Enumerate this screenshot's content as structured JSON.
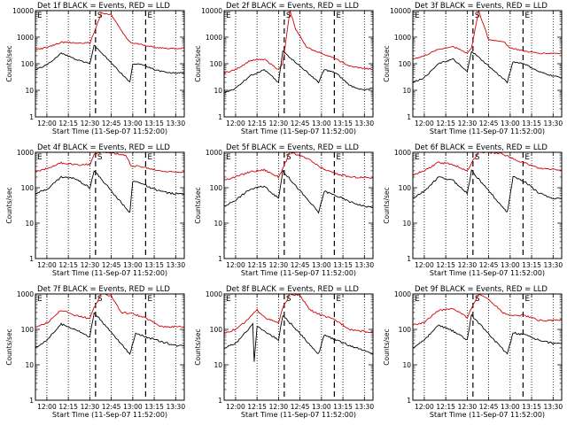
{
  "chart_data": [
    {
      "type": "line",
      "title": "Det 1f BLACK = Events, RED = LLD",
      "ylabel": "Counts/sec",
      "xlabel": "Start Time (11-Sep-07 11:52:00)",
      "yscale": "log",
      "ylim": [
        1,
        10000
      ],
      "y_ticks": [
        "1",
        "10",
        "100",
        "1000",
        "10000"
      ],
      "xlim": [
        "11:52",
        "13:36"
      ],
      "x_ticks": [
        "12:00",
        "12:15",
        "12:30",
        "12:45",
        "13:00",
        "13:15",
        "13:30"
      ],
      "markers": [
        {
          "label": "S",
          "time": "12:34"
        },
        {
          "label": "E",
          "time": "13:09"
        }
      ],
      "series": [
        {
          "name": "LLD",
          "color": "#d40000",
          "x": [
            "11:52",
            "12:00",
            "12:10",
            "12:20",
            "12:30",
            "12:33",
            "12:38",
            "12:45",
            "12:55",
            "12:59",
            "13:05",
            "13:15",
            "13:25",
            "13:36"
          ],
          "y": [
            350,
            400,
            650,
            600,
            600,
            1500,
            8000,
            7000,
            1000,
            600,
            550,
            420,
            380,
            380
          ]
        },
        {
          "name": "Events",
          "color": "#000000",
          "x": [
            "11:52",
            "12:00",
            "12:10",
            "12:20",
            "12:30",
            "12:33",
            "12:58",
            "13:00",
            "13:05",
            "13:15",
            "13:25",
            "13:36"
          ],
          "y": [
            60,
            90,
            250,
            150,
            100,
            500,
            20,
            100,
            100,
            60,
            45,
            45
          ]
        }
      ]
    },
    {
      "type": "line",
      "title": "Det 2f BLACK = Events, RED = LLD",
      "ylabel": "Counts/sec",
      "xlabel": "Start Time (11-Sep-07 11:52:00)",
      "yscale": "log",
      "ylim": [
        1,
        10000
      ],
      "y_ticks": [
        "1",
        "10",
        "100",
        "1000",
        "10000"
      ],
      "xlim": [
        "11:52",
        "13:36"
      ],
      "x_ticks": [
        "12:00",
        "12:15",
        "12:30",
        "12:45",
        "13:00",
        "13:15",
        "13:30"
      ],
      "markers": [
        {
          "label": "S",
          "time": "12:34"
        },
        {
          "label": "E",
          "time": "13:09"
        }
      ],
      "series": [
        {
          "name": "LLD",
          "color": "#d40000",
          "x": [
            "11:52",
            "12:00",
            "12:10",
            "12:20",
            "12:30",
            "12:33",
            "12:38",
            "12:42",
            "12:50",
            "13:00",
            "13:10",
            "13:20",
            "13:36"
          ],
          "y": [
            45,
            60,
            130,
            150,
            60,
            100,
            10000,
            2000,
            400,
            250,
            150,
            80,
            60
          ]
        },
        {
          "name": "Events",
          "color": "#000000",
          "x": [
            "11:52",
            "12:00",
            "12:10",
            "12:20",
            "12:30",
            "12:33",
            "12:58",
            "13:02",
            "13:10",
            "13:20",
            "13:30",
            "13:36"
          ],
          "y": [
            8,
            12,
            35,
            60,
            20,
            300,
            20,
            60,
            45,
            15,
            10,
            12
          ]
        }
      ]
    },
    {
      "type": "line",
      "title": "Det 3f BLACK = Events, RED = LLD",
      "ylabel": "Counts/sec",
      "xlabel": "Start Time (11-Sep-07 11:52:00)",
      "yscale": "log",
      "ylim": [
        1,
        10000
      ],
      "y_ticks": [
        "1",
        "10",
        "100",
        "1000",
        "10000"
      ],
      "xlim": [
        "11:52",
        "13:36"
      ],
      "x_ticks": [
        "12:00",
        "12:15",
        "12:30",
        "12:45",
        "13:00",
        "13:15",
        "13:30"
      ],
      "markers": [
        {
          "label": "S",
          "time": "12:34"
        },
        {
          "label": "E",
          "time": "13:09"
        }
      ],
      "series": [
        {
          "name": "LLD",
          "color": "#d40000",
          "x": [
            "11:52",
            "12:00",
            "12:10",
            "12:20",
            "12:30",
            "12:33",
            "12:38",
            "12:45",
            "12:55",
            "13:00",
            "13:10",
            "13:20",
            "13:36"
          ],
          "y": [
            150,
            200,
            350,
            450,
            250,
            400,
            10000,
            800,
            700,
            400,
            300,
            250,
            250
          ]
        },
        {
          "name": "Events",
          "color": "#000000",
          "x": [
            "11:52",
            "12:00",
            "12:10",
            "12:20",
            "12:30",
            "12:33",
            "12:58",
            "13:02",
            "13:10",
            "13:20",
            "13:30",
            "13:36"
          ],
          "y": [
            20,
            30,
            100,
            150,
            50,
            300,
            20,
            120,
            100,
            50,
            35,
            30
          ]
        }
      ]
    },
    {
      "type": "line",
      "title": "Det 4f BLACK = Events, RED = LLD",
      "ylabel": "Counts/sec",
      "xlabel": "Start Time (11-Sep-07 11:52:00)",
      "yscale": "log",
      "ylim": [
        1,
        1000
      ],
      "y_ticks": [
        "1",
        "10",
        "100",
        "1000"
      ],
      "xlim": [
        "11:52",
        "13:36"
      ],
      "x_ticks": [
        "12:00",
        "12:15",
        "12:30",
        "12:45",
        "13:00",
        "13:15",
        "13:30"
      ],
      "markers": [
        {
          "label": "S",
          "time": "12:34"
        },
        {
          "label": "E",
          "time": "13:09"
        }
      ],
      "series": [
        {
          "name": "LLD",
          "color": "#d40000",
          "x": [
            "11:52",
            "12:00",
            "12:10",
            "12:20",
            "12:30",
            "12:33",
            "12:38",
            "12:45",
            "12:55",
            "12:59",
            "13:05",
            "13:15",
            "13:25",
            "13:36"
          ],
          "y": [
            280,
            350,
            500,
            450,
            450,
            900,
            1000,
            1000,
            800,
            420,
            400,
            320,
            280,
            280
          ]
        },
        {
          "name": "Events",
          "color": "#000000",
          "x": [
            "11:52",
            "12:00",
            "12:10",
            "12:20",
            "12:30",
            "12:33",
            "12:58",
            "13:00",
            "13:05",
            "13:15",
            "13:25",
            "13:36"
          ],
          "y": [
            70,
            90,
            200,
            180,
            100,
            300,
            20,
            150,
            140,
            90,
            70,
            65
          ]
        }
      ]
    },
    {
      "type": "line",
      "title": "Det 5f BLACK = Events, RED = LLD",
      "ylabel": "Counts/sec",
      "xlabel": "Start Time (11-Sep-07 11:52:00)",
      "yscale": "log",
      "ylim": [
        1,
        1000
      ],
      "y_ticks": [
        "1",
        "10",
        "100",
        "1000"
      ],
      "xlim": [
        "11:52",
        "13:36"
      ],
      "x_ticks": [
        "12:00",
        "12:15",
        "12:30",
        "12:45",
        "13:00",
        "13:15",
        "13:30"
      ],
      "markers": [
        {
          "label": "S",
          "time": "12:34"
        },
        {
          "label": "E",
          "time": "13:09"
        }
      ],
      "series": [
        {
          "name": "LLD",
          "color": "#d40000",
          "x": [
            "11:52",
            "12:00",
            "12:10",
            "12:20",
            "12:30",
            "12:33",
            "12:38",
            "12:45",
            "12:52",
            "13:00",
            "13:10",
            "13:20",
            "13:36"
          ],
          "y": [
            170,
            200,
            280,
            320,
            200,
            350,
            1000,
            800,
            600,
            350,
            250,
            200,
            190
          ]
        },
        {
          "name": "Events",
          "color": "#000000",
          "x": [
            "11:52",
            "12:00",
            "12:10",
            "12:20",
            "12:30",
            "12:33",
            "12:58",
            "13:02",
            "13:10",
            "13:20",
            "13:30",
            "13:36"
          ],
          "y": [
            30,
            45,
            90,
            110,
            50,
            300,
            20,
            80,
            60,
            40,
            30,
            28
          ]
        }
      ]
    },
    {
      "type": "line",
      "title": "Det 6f BLACK = Events, RED = LLD",
      "ylabel": "Counts/sec",
      "xlabel": "Start Time (11-Sep-07 11:52:00)",
      "yscale": "log",
      "ylim": [
        1,
        1000
      ],
      "y_ticks": [
        "1",
        "10",
        "100",
        "1000"
      ],
      "xlim": [
        "11:52",
        "13:36"
      ],
      "x_ticks": [
        "12:00",
        "12:15",
        "12:30",
        "12:45",
        "13:00",
        "13:15",
        "13:30"
      ],
      "markers": [
        {
          "label": "S",
          "time": "12:34"
        },
        {
          "label": "E",
          "time": "13:09"
        }
      ],
      "series": [
        {
          "name": "LLD",
          "color": "#d40000",
          "x": [
            "11:52",
            "12:00",
            "12:10",
            "12:20",
            "12:30",
            "12:33",
            "12:38",
            "12:45",
            "12:55",
            "13:00",
            "13:10",
            "13:20",
            "13:36"
          ],
          "y": [
            230,
            300,
            520,
            450,
            300,
            500,
            1000,
            1000,
            900,
            700,
            500,
            350,
            320
          ]
        },
        {
          "name": "Events",
          "color": "#000000",
          "x": [
            "11:52",
            "12:00",
            "12:10",
            "12:20",
            "12:30",
            "12:33",
            "12:58",
            "13:02",
            "13:10",
            "13:20",
            "13:30",
            "13:36"
          ],
          "y": [
            50,
            80,
            200,
            160,
            70,
            300,
            20,
            200,
            150,
            70,
            50,
            50
          ]
        }
      ]
    },
    {
      "type": "line",
      "title": "Det 7f BLACK = Events, RED = LLD",
      "ylabel": "Counts/sec",
      "xlabel": "Start Time (11-Sep-07 11:52:00)",
      "yscale": "log",
      "ylim": [
        1,
        1000
      ],
      "y_ticks": [
        "1",
        "10",
        "100",
        "1000"
      ],
      "xlim": [
        "11:52",
        "13:36"
      ],
      "x_ticks": [
        "12:00",
        "12:15",
        "12:30",
        "12:45",
        "13:00",
        "13:15",
        "13:30"
      ],
      "markers": [
        {
          "label": "S",
          "time": "12:34"
        },
        {
          "label": "E",
          "time": "13:09"
        }
      ],
      "series": [
        {
          "name": "LLD",
          "color": "#d40000",
          "x": [
            "11:52",
            "12:00",
            "12:10",
            "12:20",
            "12:30",
            "12:33",
            "12:38",
            "12:45",
            "12:52",
            "13:00",
            "13:10",
            "13:20",
            "13:36"
          ],
          "y": [
            120,
            150,
            350,
            250,
            200,
            400,
            1000,
            900,
            300,
            280,
            200,
            120,
            120
          ]
        },
        {
          "name": "Events",
          "color": "#000000",
          "x": [
            "11:52",
            "12:00",
            "12:10",
            "12:20",
            "12:30",
            "12:33",
            "12:58",
            "13:02",
            "13:10",
            "13:20",
            "13:30",
            "13:36"
          ],
          "y": [
            30,
            50,
            140,
            100,
            60,
            300,
            20,
            80,
            60,
            45,
            35,
            35
          ]
        }
      ]
    },
    {
      "type": "line",
      "title": "Det 8f BLACK = Events, RED = LLD",
      "ylabel": "Counts/sec",
      "xlabel": "Start Time (11-Sep-07 11:52:00)",
      "yscale": "log",
      "ylim": [
        1,
        1000
      ],
      "y_ticks": [
        "1",
        "10",
        "100",
        "1000"
      ],
      "xlim": [
        "11:52",
        "13:36"
      ],
      "x_ticks": [
        "12:00",
        "12:15",
        "12:30",
        "12:45",
        "13:00",
        "13:15",
        "13:30"
      ],
      "markers": [
        {
          "label": "S",
          "time": "12:34"
        },
        {
          "label": "E",
          "time": "13:09"
        }
      ],
      "series": [
        {
          "name": "LLD",
          "color": "#d40000",
          "x": [
            "11:52",
            "12:00",
            "12:08",
            "12:15",
            "12:22",
            "12:30",
            "12:33",
            "12:38",
            "12:45",
            "12:52",
            "13:00",
            "13:10",
            "13:20",
            "13:36"
          ],
          "y": [
            80,
            100,
            180,
            350,
            200,
            150,
            400,
            1000,
            900,
            350,
            250,
            180,
            100,
            80
          ]
        },
        {
          "name": "Events",
          "color": "#000000",
          "x": [
            "11:52",
            "12:00",
            "12:08",
            "12:12",
            "12:13",
            "12:15",
            "12:22",
            "12:30",
            "12:33",
            "12:58",
            "13:02",
            "13:10",
            "13:20",
            "13:30",
            "13:36"
          ],
          "y": [
            30,
            40,
            90,
            150,
            12,
            120,
            80,
            50,
            250,
            20,
            70,
            50,
            35,
            25,
            20
          ]
        }
      ]
    },
    {
      "type": "line",
      "title": "Det 9f BLACK = Events, RED = LLD",
      "ylabel": "Counts/sec",
      "xlabel": "Start Time (11-Sep-07 11:52:00)",
      "yscale": "log",
      "ylim": [
        1,
        1000
      ],
      "y_ticks": [
        "1",
        "10",
        "100",
        "1000"
      ],
      "xlim": [
        "11:52",
        "13:36"
      ],
      "x_ticks": [
        "12:00",
        "12:15",
        "12:30",
        "12:45",
        "13:00",
        "13:15",
        "13:30"
      ],
      "markers": [
        {
          "label": "S",
          "time": "12:34"
        },
        {
          "label": "E",
          "time": "13:09"
        }
      ],
      "series": [
        {
          "name": "LLD",
          "color": "#d40000",
          "x": [
            "11:52",
            "12:00",
            "12:10",
            "12:20",
            "12:30",
            "12:33",
            "12:38",
            "12:45",
            "12:55",
            "13:00",
            "13:10",
            "13:20",
            "13:36"
          ],
          "y": [
            130,
            160,
            350,
            380,
            220,
            400,
            1000,
            700,
            300,
            250,
            250,
            180,
            180
          ]
        },
        {
          "name": "Events",
          "color": "#000000",
          "x": [
            "11:52",
            "12:00",
            "12:10",
            "12:20",
            "12:30",
            "12:33",
            "12:58",
            "13:02",
            "13:10",
            "13:20",
            "13:30",
            "13:36"
          ],
          "y": [
            30,
            50,
            130,
            90,
            50,
            250,
            20,
            80,
            70,
            50,
            40,
            40
          ]
        }
      ]
    }
  ]
}
